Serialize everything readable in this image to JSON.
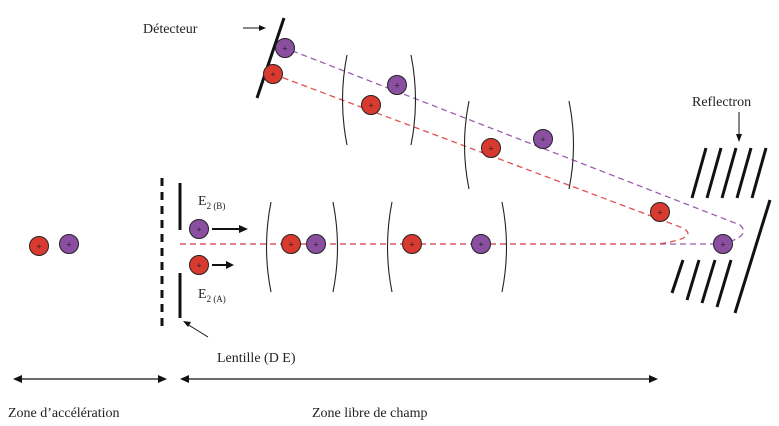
{
  "labels": {
    "detector": "Détecteur",
    "reflectron": "Reflectron",
    "lens": "Lentille (D E)",
    "energy_b_main": "E",
    "energy_b_sub": "2 (B)",
    "energy_a_main": "E",
    "energy_a_sub": "2 (A)",
    "zone_acceleration": "Zone d’accélération",
    "zone_free_field": "Zone libre de champ"
  },
  "ion_symbol": "+",
  "colors": {
    "ion_a": "#d93a30",
    "ion_b": "#8a4fa0",
    "path_a": "#e05050",
    "path_b": "#9b5bb0",
    "ink": "#111111"
  }
}
